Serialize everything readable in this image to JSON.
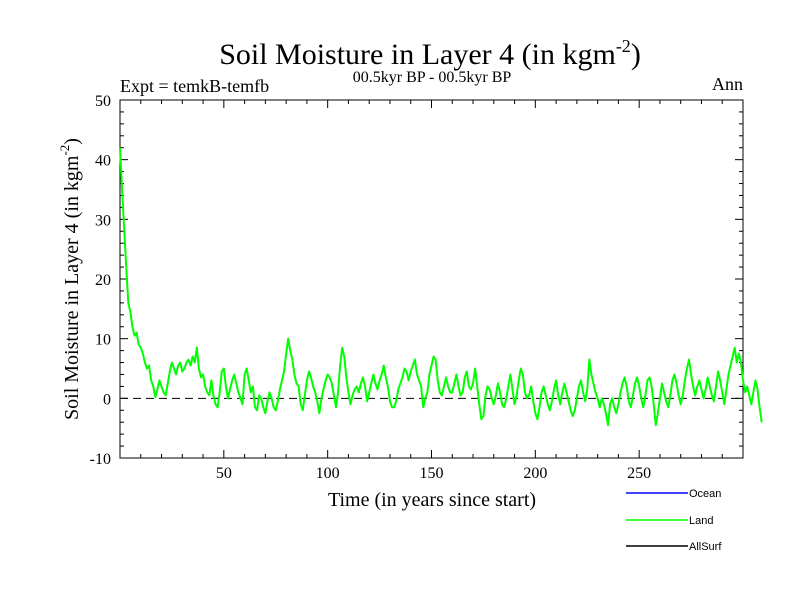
{
  "chart_data": {
    "type": "line",
    "title": "Soil Moisture in Layer 4 (in kgm",
    "title_sup": "-2",
    "title_close": ")",
    "subtitle": "00.5kyr BP - 00.5kyr BP",
    "left_annotation": "Expt = temkB-temfb",
    "right_annotation": "Ann",
    "xlabel": "Time (in years since start)",
    "ylabel": "Soil Moisture in Layer 4 (in kgm",
    "ylabel_sup": "-2",
    "ylabel_close": ")",
    "xlim": [
      0,
      300
    ],
    "ylim": [
      -10,
      50
    ],
    "x_ticks": [
      50,
      100,
      150,
      200,
      250
    ],
    "x_tick_labels": [
      "50",
      "100",
      "150",
      "200",
      "250"
    ],
    "y_ticks": [
      -10,
      0,
      10,
      20,
      30,
      40,
      50
    ],
    "y_tick_labels": [
      "-10",
      "0",
      "10",
      "20",
      "30",
      "40",
      "50"
    ],
    "reference_line": 0,
    "legend": [
      {
        "name": "Ocean",
        "color": "#0000ff"
      },
      {
        "name": "Land",
        "color": "#00ff00"
      },
      {
        "name": "AllSurf",
        "color": "#000000"
      }
    ],
    "series": [
      {
        "name": "Land",
        "color": "#00ff00",
        "x_start": 0,
        "x_step": 1,
        "values": [
          42.0,
          35.0,
          28.5,
          22.0,
          16.0,
          14.5,
          12.0,
          10.5,
          11.0,
          9.0,
          8.5,
          7.5,
          6.0,
          5.0,
          5.5,
          3.0,
          2.0,
          0.2,
          1.5,
          3.0,
          2.0,
          1.0,
          0.5,
          2.5,
          4.5,
          6.0,
          5.0,
          4.0,
          5.5,
          6.0,
          4.5,
          5.0,
          6.0,
          6.5,
          5.5,
          7.0,
          6.0,
          8.5,
          5.0,
          3.5,
          4.0,
          2.0,
          1.0,
          0.5,
          3.0,
          0.5,
          -1.0,
          -1.5,
          1.0,
          4.5,
          5.0,
          2.0,
          0.0,
          1.5,
          3.0,
          4.0,
          2.5,
          1.0,
          0.0,
          -1.0,
          4.0,
          5.0,
          3.0,
          1.0,
          2.0,
          -1.5,
          -2.0,
          0.5,
          0.0,
          -1.5,
          -2.5,
          -0.5,
          1.0,
          0.0,
          -1.5,
          -2.0,
          -0.5,
          1.5,
          3.0,
          4.5,
          7.5,
          10.0,
          8.0,
          6.5,
          4.0,
          2.5,
          2.0,
          -1.0,
          -2.0,
          0.5,
          3.0,
          4.5,
          3.5,
          2.0,
          1.0,
          -0.5,
          -2.5,
          0.0,
          1.5,
          3.0,
          4.0,
          3.5,
          2.5,
          0.5,
          -1.5,
          1.0,
          5.5,
          8.5,
          7.0,
          3.5,
          1.0,
          -1.0,
          0.5,
          1.5,
          2.0,
          1.0,
          2.5,
          3.5,
          2.0,
          -0.5,
          1.0,
          2.5,
          4.0,
          2.5,
          1.5,
          3.0,
          4.0,
          5.5,
          3.5,
          2.0,
          -0.5,
          -1.5,
          -1.5,
          -0.5,
          1.5,
          2.5,
          3.5,
          5.0,
          4.5,
          3.0,
          4.5,
          5.5,
          6.5,
          4.0,
          3.0,
          2.0,
          -1.5,
          0.0,
          1.0,
          4.0,
          5.5,
          7.0,
          6.5,
          3.0,
          1.0,
          0.5,
          2.0,
          3.5,
          2.0,
          1.0,
          1.0,
          2.5,
          4.0,
          2.0,
          0.5,
          1.0,
          3.5,
          4.5,
          2.0,
          1.5,
          2.5,
          5.0,
          2.0,
          -1.0,
          -3.5,
          -3.0,
          0.5,
          2.0,
          1.5,
          0.0,
          -1.0,
          0.5,
          2.5,
          1.0,
          -1.0,
          -1.5,
          0.0,
          2.0,
          4.0,
          1.5,
          -1.0,
          0.5,
          3.0,
          5.0,
          4.0,
          1.0,
          0.0,
          0.5,
          2.0,
          -0.5,
          -2.5,
          -3.5,
          -1.5,
          1.0,
          2.0,
          0.5,
          -1.0,
          -2.0,
          -0.5,
          1.5,
          3.0,
          0.5,
          -1.0,
          1.0,
          2.5,
          1.0,
          -0.5,
          -2.0,
          -3.0,
          -2.0,
          0.0,
          2.0,
          3.0,
          1.0,
          -0.5,
          1.5,
          6.5,
          4.0,
          2.5,
          1.0,
          0.0,
          -1.5,
          0.0,
          -1.0,
          -2.5,
          -4.5,
          -1.0,
          0.0,
          -1.5,
          -2.5,
          -1.0,
          1.0,
          2.5,
          3.5,
          2.0,
          -0.5,
          -1.5,
          0.5,
          2.5,
          3.5,
          2.0,
          0.0,
          -1.5,
          0.5,
          3.0,
          3.5,
          2.0,
          -1.0,
          -4.5,
          -2.5,
          0.0,
          2.5,
          1.0,
          -0.5,
          -1.5,
          0.5,
          3.0,
          4.0,
          2.5,
          0.5,
          -1.0,
          0.5,
          3.0,
          5.0,
          6.5,
          4.0,
          2.0,
          0.5,
          2.0,
          3.0,
          1.5,
          0.0,
          1.5,
          3.5,
          2.0,
          0.5,
          -0.5,
          2.0,
          4.5,
          3.0,
          1.0,
          -1.0,
          1.5,
          4.0,
          5.5,
          7.0,
          8.5,
          6.0,
          7.5,
          6.0,
          3.0,
          1.0,
          2.0,
          0.5,
          -1.0,
          1.0,
          3.0,
          1.5,
          -1.5,
          -4.0
        ]
      }
    ]
  }
}
